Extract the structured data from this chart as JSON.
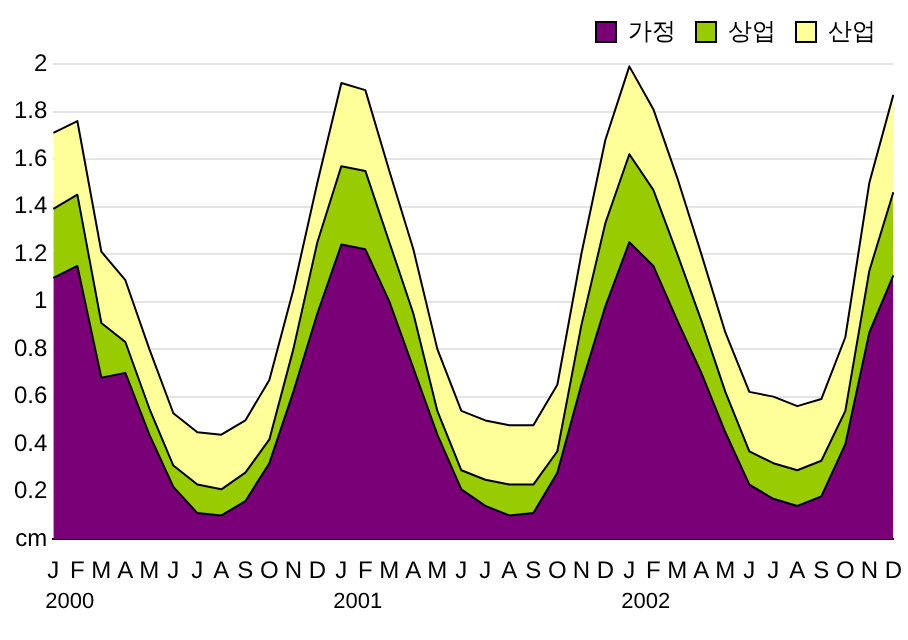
{
  "chart_data": {
    "type": "area",
    "stacked": true,
    "grid": "y",
    "legend": "top right",
    "categories": [
      "J",
      "F",
      "M",
      "A",
      "M",
      "J",
      "J",
      "A",
      "S",
      "O",
      "N",
      "D",
      "J",
      "F",
      "M",
      "A",
      "M",
      "J",
      "J",
      "A",
      "S",
      "O",
      "N",
      "D",
      "J",
      "F",
      "M",
      "A",
      "M",
      "J",
      "J",
      "A",
      "S",
      "O",
      "N",
      "D"
    ],
    "annotations": [
      "2000",
      "2001",
      "2002"
    ],
    "ylim": [
      0,
      2
    ],
    "yticks": [
      {
        "value": 0,
        "label": "cm"
      },
      0.2,
      0.4,
      0.6,
      0.8,
      1,
      1.2,
      1.4,
      1.6,
      1.8,
      2
    ],
    "series": [
      {
        "name": "가정",
        "color": "#7a0078",
        "values": [
          1.1,
          1.15,
          0.68,
          0.7,
          0.44,
          0.22,
          0.11,
          0.1,
          0.16,
          0.32,
          0.62,
          0.95,
          1.24,
          1.22,
          1.0,
          0.72,
          0.44,
          0.21,
          0.14,
          0.1,
          0.11,
          0.28,
          0.65,
          0.98,
          1.25,
          1.15,
          0.92,
          0.7,
          0.45,
          0.23,
          0.17,
          0.14,
          0.18,
          0.4,
          0.87,
          1.11
        ]
      },
      {
        "name": "상업",
        "color": "#99cc00",
        "values": [
          0.29,
          0.3,
          0.23,
          0.13,
          0.11,
          0.09,
          0.12,
          0.11,
          0.12,
          0.1,
          0.18,
          0.3,
          0.33,
          0.33,
          0.25,
          0.23,
          0.1,
          0.08,
          0.11,
          0.13,
          0.12,
          0.09,
          0.25,
          0.35,
          0.37,
          0.32,
          0.28,
          0.22,
          0.17,
          0.14,
          0.15,
          0.15,
          0.15,
          0.14,
          0.26,
          0.35
        ]
      },
      {
        "name": "산업",
        "color": "#ffff99",
        "values": [
          0.32,
          0.31,
          0.3,
          0.26,
          0.25,
          0.22,
          0.22,
          0.23,
          0.22,
          0.25,
          0.25,
          0.25,
          0.35,
          0.34,
          0.3,
          0.27,
          0.26,
          0.25,
          0.25,
          0.25,
          0.25,
          0.28,
          0.3,
          0.35,
          0.37,
          0.34,
          0.32,
          0.28,
          0.25,
          0.25,
          0.28,
          0.27,
          0.26,
          0.31,
          0.37,
          0.41
        ]
      }
    ]
  }
}
